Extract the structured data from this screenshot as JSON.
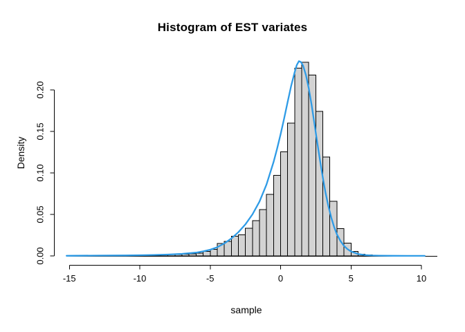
{
  "title": "Histogram of EST variates",
  "chart_data": {
    "type": "bar",
    "subtype": "histogram-with-density-curve",
    "title": "Histogram of EST variates",
    "xlabel": "sample",
    "ylabel": "Density",
    "x_ticks": [
      -15,
      -10,
      -5,
      0,
      5,
      10
    ],
    "x_tick_labels": [
      "-15",
      "-10",
      "-5",
      "0",
      "5",
      "10"
    ],
    "y_ticks": [
      0.0,
      0.05,
      0.1,
      0.15,
      0.2
    ],
    "y_tick_labels": [
      "0.00",
      "0.05",
      "0.10",
      "0.15",
      "0.20"
    ],
    "xlim": [
      -16,
      11
    ],
    "ylim": [
      0,
      0.235
    ],
    "grid": false,
    "legend": "none",
    "bar_fill": "#d3d3d3",
    "bar_stroke": "#000000",
    "curve_color": "#2e9be6",
    "axis_color": "#000000",
    "bins": {
      "start": -10,
      "width": 0.5,
      "densities": [
        0.0008,
        0.0009,
        0.0011,
        0.0013,
        0.0015,
        0.0018,
        0.0022,
        0.0027,
        0.0035,
        0.0055,
        0.008,
        0.0148,
        0.0175,
        0.0236,
        0.0256,
        0.0333,
        0.0425,
        0.0558,
        0.0742,
        0.0972,
        0.1253,
        0.16,
        0.2263,
        0.2333,
        0.218,
        0.174,
        0.119,
        0.066,
        0.033,
        0.0155,
        0.0055,
        0.002,
        0.0012,
        0.0008,
        0.0005
      ]
    },
    "series": [
      {
        "name": "density curve",
        "type": "line",
        "color": "#2e9be6",
        "points": [
          [
            -15.2,
            0.0002
          ],
          [
            -13.0,
            0.0004
          ],
          [
            -11.0,
            0.0006
          ],
          [
            -10.0,
            0.0008
          ],
          [
            -9.0,
            0.0012
          ],
          [
            -8.0,
            0.0017
          ],
          [
            -7.0,
            0.0025
          ],
          [
            -6.0,
            0.004
          ],
          [
            -5.5,
            0.0055
          ],
          [
            -5.0,
            0.0075
          ],
          [
            -4.5,
            0.0105
          ],
          [
            -4.0,
            0.015
          ],
          [
            -3.5,
            0.021
          ],
          [
            -3.0,
            0.0285
          ],
          [
            -2.5,
            0.038
          ],
          [
            -2.0,
            0.05
          ],
          [
            -1.5,
            0.0655
          ],
          [
            -1.0,
            0.086
          ],
          [
            -0.5,
            0.113
          ],
          [
            -0.25,
            0.129
          ],
          [
            0.0,
            0.1465
          ],
          [
            0.25,
            0.1655
          ],
          [
            0.5,
            0.1855
          ],
          [
            0.75,
            0.205
          ],
          [
            1.0,
            0.2215
          ],
          [
            1.15,
            0.23
          ],
          [
            1.3,
            0.2347
          ],
          [
            1.45,
            0.2335
          ],
          [
            1.6,
            0.229
          ],
          [
            1.8,
            0.218
          ],
          [
            2.0,
            0.202
          ],
          [
            2.2,
            0.182
          ],
          [
            2.4,
            0.16
          ],
          [
            2.6,
            0.137
          ],
          [
            2.8,
            0.115
          ],
          [
            3.0,
            0.094
          ],
          [
            3.2,
            0.0755
          ],
          [
            3.4,
            0.0595
          ],
          [
            3.6,
            0.046
          ],
          [
            3.8,
            0.035
          ],
          [
            4.0,
            0.026
          ],
          [
            4.25,
            0.018
          ],
          [
            4.5,
            0.0122
          ],
          [
            4.75,
            0.0082
          ],
          [
            5.0,
            0.0054
          ],
          [
            5.5,
            0.0023
          ],
          [
            6.0,
            0.001
          ],
          [
            6.5,
            0.0005
          ],
          [
            7.0,
            0.0003
          ],
          [
            8.0,
            0.0002
          ],
          [
            9.0,
            0.0001
          ],
          [
            10.23,
            0.0001
          ]
        ]
      }
    ]
  }
}
